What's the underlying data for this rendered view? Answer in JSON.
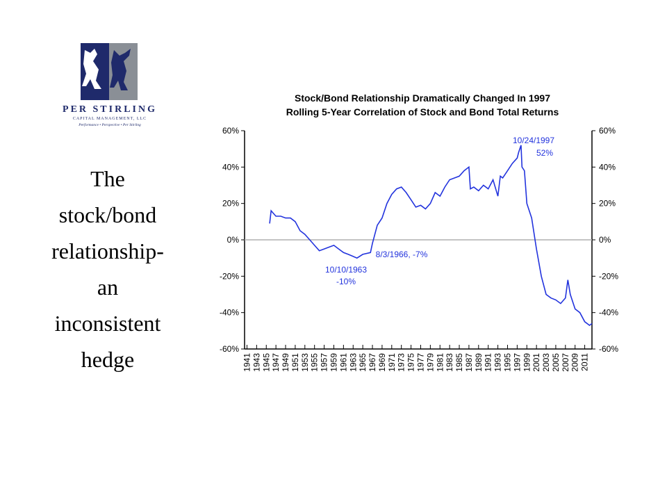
{
  "logo": {
    "name": "PER STIRLING",
    "subtitle": "CAPITAL MANAGEMENT, LLC",
    "tagline": "Performance • Perspective • Per Stirling"
  },
  "slide_title_lines": [
    "The",
    "stock/bond",
    "relationship-",
    "an",
    "inconsistent",
    "hedge"
  ],
  "chart_data": {
    "type": "line",
    "title": "Stock/Bond Relationship Dramatically Changed In 1997",
    "subtitle": "Rolling 5-Year Correlation of Stock and Bond Total Returns",
    "x": [
      1945.7,
      1946,
      1947,
      1948,
      1949,
      1950,
      1951,
      1952,
      1953,
      1954,
      1955,
      1956,
      1957,
      1958,
      1959,
      1960,
      1961,
      1962,
      1963.8,
      1965,
      1966.6,
      1967,
      1968,
      1969,
      1970,
      1971,
      1972,
      1973,
      1974,
      1975,
      1976,
      1977,
      1978,
      1979,
      1980,
      1981,
      1982,
      1983,
      1984,
      1985,
      1986,
      1987,
      1987.3,
      1988,
      1989,
      1990,
      1991,
      1992,
      1993,
      1993.5,
      1994,
      1995,
      1996,
      1997,
      1997.3,
      1997.8,
      1998,
      1998.5,
      1999,
      2000,
      2001,
      2002,
      2003,
      2004,
      2005,
      2006,
      2007,
      2007.5,
      2008,
      2009,
      2010,
      2011,
      2012,
      2012.5
    ],
    "series": [
      {
        "color": "#2233dd",
        "values": [
          9,
          16,
          13,
          13,
          12,
          12,
          10,
          5,
          3,
          0,
          -3,
          -6,
          -5,
          -4,
          -3,
          -5,
          -7,
          -8,
          -10,
          -8,
          -7,
          -2,
          8,
          12,
          20,
          25,
          28,
          29,
          26,
          22,
          18,
          19,
          17,
          20,
          26,
          24,
          29,
          33,
          34,
          35,
          38,
          40,
          28,
          29,
          27,
          30,
          28,
          33,
          24,
          35,
          34,
          38,
          42,
          45,
          48,
          52,
          40,
          38,
          20,
          12,
          -5,
          -20,
          -30,
          -32,
          -33,
          -35,
          -32,
          -22,
          -30,
          -38,
          -40,
          -45,
          -47,
          -46
        ]
      }
    ],
    "xlim": [
      1940.5,
      2012.5
    ],
    "xticks": [
      1941,
      1943,
      1945,
      1947,
      1949,
      1951,
      1953,
      1955,
      1957,
      1959,
      1961,
      1963,
      1965,
      1967,
      1969,
      1971,
      1973,
      1975,
      1977,
      1979,
      1981,
      1983,
      1985,
      1987,
      1989,
      1991,
      1993,
      1995,
      1997,
      1999,
      2001,
      2003,
      2005,
      2007,
      2009,
      2011
    ],
    "ylim": [
      -60,
      60
    ],
    "yticks": [
      {
        "value": 60,
        "label": "60%"
      },
      {
        "value": 40,
        "label": "40%"
      },
      {
        "value": 20,
        "label": "20%"
      },
      {
        "value": 0,
        "label": "0%"
      },
      {
        "value": -20,
        "label": "-20%"
      },
      {
        "value": -40,
        "label": "-40%"
      },
      {
        "value": -60,
        "label": "-60%"
      }
    ],
    "y2lim": [
      -60,
      60
    ],
    "y2ticks": [
      {
        "value": 60,
        "label": "60%"
      },
      {
        "value": 40,
        "label": "40%"
      },
      {
        "value": 20,
        "label": "20%"
      },
      {
        "value": 0,
        "label": "0%"
      },
      {
        "value": -20,
        "label": "-20%"
      },
      {
        "value": -40,
        "label": "-40%"
      },
      {
        "value": -60,
        "label": "-60%"
      }
    ],
    "zero_line": true,
    "annotations": [
      {
        "lines": [
          "10/24/1997",
          "52%"
        ]
      },
      {
        "lines": [
          "10/10/1963",
          "-10%"
        ]
      },
      {
        "lines": [
          "8/3/1966, -7%"
        ]
      }
    ]
  }
}
